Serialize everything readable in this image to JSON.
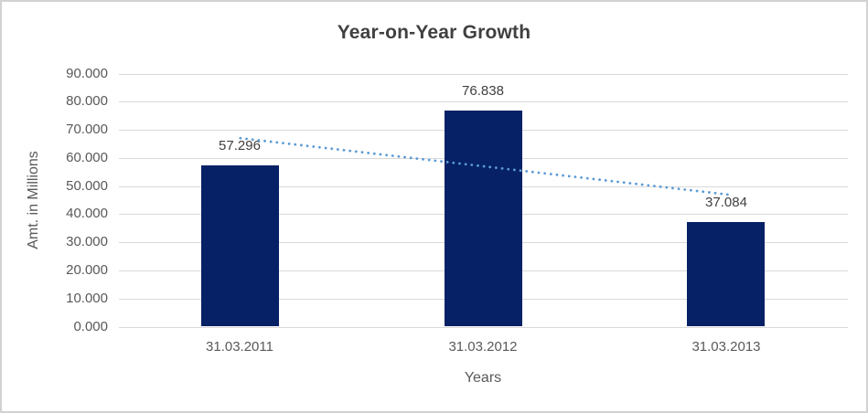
{
  "chart_data": {
    "type": "bar",
    "title": "Year-on-Year Growth",
    "xlabel": "Years",
    "ylabel": "Amt. in Millions",
    "categories": [
      "31.03.2011",
      "31.03.2012",
      "31.03.2013"
    ],
    "values": [
      57.296,
      76.838,
      37.084
    ],
    "data_labels": [
      "57.296",
      "76.838",
      "37.084"
    ],
    "ylim": [
      0,
      90
    ],
    "y_tick_step": 10,
    "y_tick_labels": [
      "0.000",
      "10.000",
      "20.000",
      "30.000",
      "40.000",
      "50.000",
      "60.000",
      "70.000",
      "80.000",
      "90.000"
    ],
    "grid": true,
    "legend": "none",
    "trendline": {
      "type": "linear",
      "style": "dotted",
      "start_value": 67.18,
      "end_value": 46.97
    },
    "colors": {
      "bar": "#062165",
      "trendline": "#5b9bd5",
      "gridline": "#d9d9d9",
      "title_text": "#404040",
      "axis_text": "#595959",
      "frame_border": "#d2d2d2"
    }
  }
}
